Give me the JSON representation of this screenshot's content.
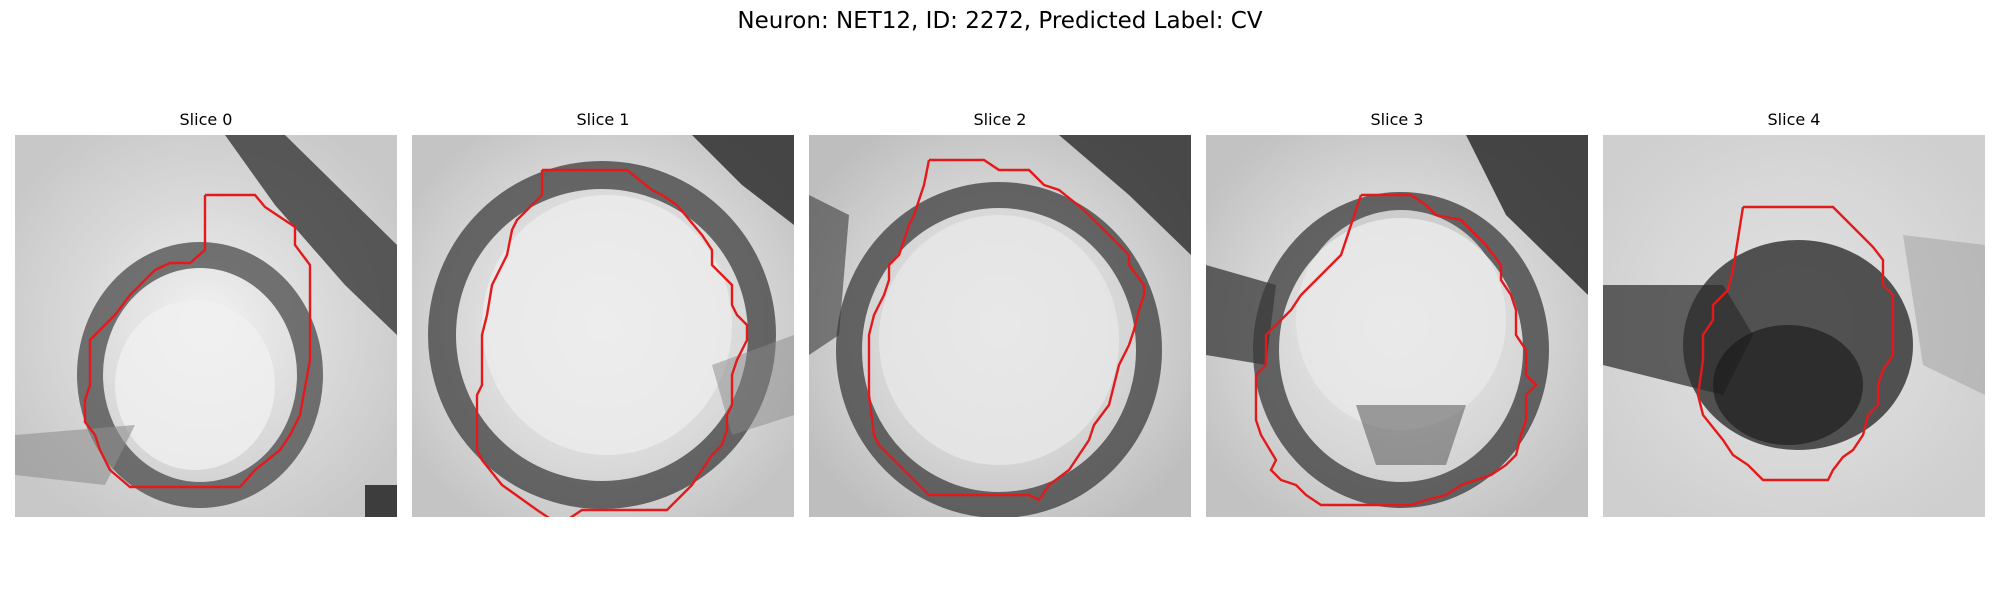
{
  "figure": {
    "title": "Neuron: NET12, ID: 2272, Predicted Label: CV"
  },
  "panels": [
    {
      "title": "Slice 0",
      "image_description": "grayscale microscopy patch; pale roundish cell body with dark ring edge, dark band at upper right",
      "contour_color": "#e31a1c"
    },
    {
      "title": "Slice 1",
      "image_description": "grayscale microscopy patch; large bright round cell body bordered by a dark ring",
      "contour_color": "#e31a1c"
    },
    {
      "title": "Slice 2",
      "image_description": "grayscale microscopy patch; round bright cell body with dark ring, darker at top right",
      "contour_color": "#e31a1c"
    },
    {
      "title": "Slice 3",
      "image_description": "grayscale microscopy patch; bright cell body with dark ring, dark patches at left and top right",
      "contour_color": "#e31a1c"
    },
    {
      "title": "Slice 4",
      "image_description": "grayscale microscopy patch; dark blob in the center with a dark band extending left",
      "contour_color": "#e31a1c"
    }
  ]
}
